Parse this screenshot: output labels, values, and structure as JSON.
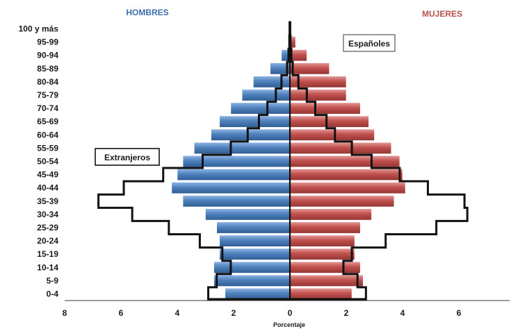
{
  "chart_data": {
    "type": "bar",
    "orientation": "horizontal-population-pyramid",
    "left_header": "HOMBRES",
    "right_header": "MUJERES",
    "xlabel": "Porcentaje",
    "xlim": [
      -8,
      8
    ],
    "x_ticks": [
      -8,
      -6,
      -4,
      -2,
      0,
      2,
      4,
      6
    ],
    "x_tick_labels": [
      "8",
      "6",
      "4",
      "2",
      "0",
      "2",
      "4",
      "6"
    ],
    "categories": [
      "0-4",
      "5-9",
      "10-14",
      "15-19",
      "20-24",
      "25-29",
      "30-34",
      "35-39",
      "40-44",
      "45-49",
      "50-54",
      "55-59",
      "60-64",
      "65-69",
      "70-74",
      "75-79",
      "80-84",
      "85-89",
      "90-94",
      "95-99",
      "100 y más"
    ],
    "series": [
      {
        "name": "Españoles",
        "hombres": [
          2.3,
          2.7,
          2.7,
          2.5,
          2.5,
          2.6,
          3.0,
          3.8,
          4.2,
          4.0,
          3.8,
          3.4,
          2.8,
          2.5,
          2.1,
          1.7,
          1.3,
          0.7,
          0.3,
          0.05,
          0.01
        ],
        "mujeres": [
          2.2,
          2.6,
          2.5,
          2.3,
          2.3,
          2.5,
          2.9,
          3.7,
          4.1,
          4.0,
          3.9,
          3.6,
          3.0,
          2.8,
          2.5,
          2.0,
          2.0,
          1.4,
          0.6,
          0.2,
          0.02
        ],
        "colors": {
          "hombres": "#4f81bd",
          "mujeres": "#c0504d"
        }
      },
      {
        "name": "Extranjeros",
        "hombres": [
          2.9,
          2.6,
          2.1,
          2.4,
          3.2,
          4.3,
          5.6,
          6.8,
          5.9,
          4.5,
          3.1,
          2.1,
          1.5,
          1.1,
          0.8,
          0.5,
          0.3,
          0.1,
          0.05,
          0.02,
          0.01
        ],
        "mujeres": [
          2.7,
          2.4,
          1.9,
          2.2,
          3.4,
          5.2,
          6.3,
          6.2,
          4.9,
          3.9,
          2.9,
          2.2,
          1.6,
          1.3,
          0.9,
          0.6,
          0.3,
          0.1,
          0.05,
          0.02,
          0.01
        ],
        "color": "#111111"
      }
    ],
    "annotations": [
      "Españoles",
      "Extranjeros"
    ],
    "grid": false
  }
}
